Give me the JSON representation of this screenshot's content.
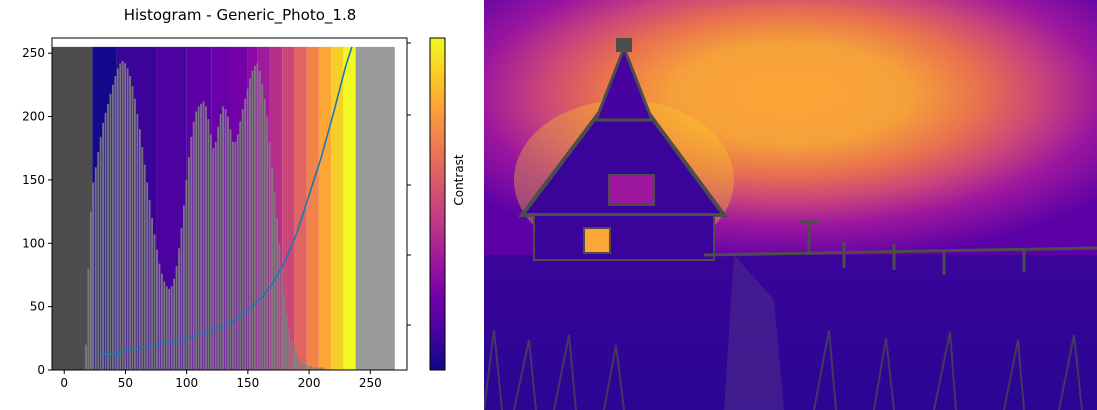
{
  "chart_data": {
    "type": "bar",
    "title": "Histogram - Generic_Photo_1.8",
    "xlabel": "",
    "ylabel": "",
    "xlim": [
      -10,
      280
    ],
    "ylim": [
      0,
      262
    ],
    "xticks": [
      0,
      50,
      100,
      150,
      200,
      250
    ],
    "yticks": [
      0,
      50,
      100,
      150,
      200,
      250
    ],
    "grid": false,
    "background_bands": {
      "max_value": 255,
      "segments": [
        {
          "x0": -10,
          "x1": 23,
          "color": "#4d4d4d"
        },
        {
          "x0": 23,
          "x1": 43,
          "color": "#14098c"
        },
        {
          "x0": 43,
          "x1": 75,
          "color": "#3a049a"
        },
        {
          "x0": 75,
          "x1": 100,
          "color": "#4c02a1"
        },
        {
          "x0": 100,
          "x1": 120,
          "color": "#5c01a6"
        },
        {
          "x0": 120,
          "x1": 135,
          "color": "#6a00a8"
        },
        {
          "x0": 135,
          "x1": 150,
          "color": "#7201a8"
        },
        {
          "x0": 150,
          "x1": 158,
          "color": "#8b0aa5"
        },
        {
          "x0": 158,
          "x1": 168,
          "color": "#a01a9c"
        },
        {
          "x0": 168,
          "x1": 178,
          "color": "#b52f8c"
        },
        {
          "x0": 178,
          "x1": 188,
          "color": "#cc4778"
        },
        {
          "x0": 188,
          "x1": 198,
          "color": "#e16462"
        },
        {
          "x0": 198,
          "x1": 208,
          "color": "#f1834b"
        },
        {
          "x0": 208,
          "x1": 218,
          "color": "#fca636"
        },
        {
          "x0": 218,
          "x1": 228,
          "color": "#f6d027"
        },
        {
          "x0": 228,
          "x1": 238,
          "color": "#f0f921"
        },
        {
          "x0": 238,
          "x1": 270,
          "color": "#999999"
        }
      ]
    },
    "series": [
      {
        "type": "histogram",
        "color": "#808080",
        "x": [
          18,
          20,
          22,
          24,
          26,
          28,
          30,
          32,
          34,
          36,
          38,
          40,
          42,
          44,
          46,
          48,
          50,
          52,
          54,
          56,
          58,
          60,
          62,
          64,
          66,
          68,
          70,
          72,
          74,
          76,
          78,
          80,
          82,
          84,
          86,
          88,
          90,
          92,
          94,
          96,
          98,
          100,
          102,
          104,
          106,
          108,
          110,
          112,
          114,
          116,
          118,
          120,
          122,
          124,
          126,
          128,
          130,
          132,
          134,
          136,
          138,
          140,
          142,
          144,
          146,
          148,
          150,
          152,
          154,
          156,
          158,
          160,
          162,
          164,
          166,
          168,
          170,
          172,
          174,
          176,
          178,
          180,
          182,
          184,
          186,
          188,
          190,
          192,
          194,
          196,
          198,
          200,
          202,
          204,
          206,
          208,
          210,
          212
        ],
        "values": [
          20,
          80,
          125,
          148,
          160,
          172,
          184,
          195,
          203,
          210,
          218,
          225,
          232,
          238,
          242,
          244,
          242,
          238,
          232,
          224,
          214,
          202,
          190,
          176,
          162,
          148,
          134,
          120,
          107,
          95,
          84,
          76,
          70,
          66,
          64,
          66,
          72,
          82,
          96,
          112,
          130,
          150,
          168,
          184,
          196,
          204,
          208,
          210,
          212,
          208,
          198,
          186,
          175,
          180,
          192,
          202,
          208,
          206,
          200,
          190,
          180,
          180,
          186,
          196,
          206,
          214,
          222,
          230,
          236,
          240,
          242,
          236,
          226,
          214,
          200,
          180,
          160,
          140,
          120,
          100,
          80,
          60,
          44,
          32,
          24,
          18,
          13,
          9,
          7,
          5,
          4,
          3,
          3,
          2,
          2,
          2,
          2,
          2
        ]
      },
      {
        "type": "line",
        "color": "#1f77b4",
        "x": [
          30,
          40,
          50,
          60,
          70,
          80,
          90,
          100,
          110,
          120,
          130,
          140,
          150,
          160,
          170,
          180,
          190,
          200,
          210,
          220,
          230,
          235
        ],
        "values": [
          12,
          13,
          15,
          17,
          19,
          21,
          23,
          25,
          28,
          31,
          35,
          40,
          47,
          56,
          68,
          85,
          108,
          138,
          168,
          203,
          240,
          255
        ]
      }
    ],
    "colorbar": {
      "label": "Contrast",
      "colormap": "plasma"
    }
  },
  "image_panel": {
    "description_free": true
  },
  "colors": {
    "plasma": [
      "#0d0887",
      "#46039f",
      "#7201a8",
      "#9c179e",
      "#bd3786",
      "#d8576b",
      "#ed7953",
      "#fb9f3a",
      "#fdca26",
      "#f0f921"
    ]
  }
}
